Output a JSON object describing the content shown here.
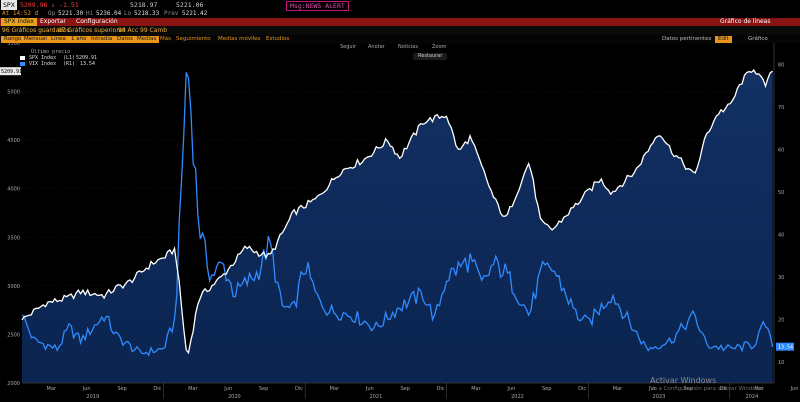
{
  "header": {
    "ticker": "SPX",
    "price_line": "5209.98 ↓ -1.51",
    "time": "At 14:52 d",
    "open_label": "Op",
    "open": "5221.30",
    "high_label": "Hi",
    "high": "5236.04",
    "low_label": "Lo",
    "low": "5218.33",
    "prev_label": "Prev",
    "prev": "5221.42",
    "ref1": "5218.97",
    "ref2": "5221.06",
    "alert": "Msg:NEWS ALERT"
  },
  "toolbar": {
    "chip": "SPX Index",
    "items": [
      "Exportar",
      "Configuración"
    ],
    "right_label": "Gráfico de líneas"
  },
  "row3": {
    "items": [
      "96 Gráficos guardados",
      "97 Gráficos superiores",
      "98 Acc",
      "99 Camb"
    ]
  },
  "rangebar": {
    "chips": [
      "Rango",
      "Mensual",
      "Línea",
      "1 año",
      "Intradía",
      "Datos",
      "Medias"
    ],
    "labels": [
      "Más",
      "Seguimiento",
      "Medias móviles",
      "Estudios"
    ]
  },
  "periods": {
    "items": [
      "1D",
      "3D",
      "1M",
      "6M",
      "YTD",
      "1A",
      "5A",
      "Máx",
      "Diario",
      "Mensual",
      "Tabla"
    ],
    "right_items": [
      "Datos pertinentes",
      "Edit",
      "Gráfico"
    ]
  },
  "chart_tools": [
    "Seguir",
    "Anotar",
    "Noticias",
    "Zoom"
  ],
  "restore_label": "Restaurar",
  "legend": {
    "title": "Último precio",
    "rows": [
      {
        "name": "SPX Index",
        "tag": "(L1)",
        "value": "5209.91"
      },
      {
        "name": "VIX Index",
        "tag": "(R1)",
        "value": "13.54"
      }
    ]
  },
  "watermark": {
    "title": "Activar Windows",
    "subtitle": "Ve a Configuración para activar Windows."
  },
  "chart_data": {
    "type": "line",
    "x_range": [
      "2019-01",
      "2024-04"
    ],
    "x_tick_labels": [
      "Mar",
      "Jun",
      "Sep",
      "Dic",
      "Mar",
      "Jun",
      "Sep",
      "Dic",
      "Mar",
      "Jun",
      "Sep",
      "Dic",
      "Mar",
      "Jun",
      "Sep",
      "Dic",
      "Mar",
      "Jun",
      "Sep",
      "Dic",
      "Mar",
      "Jun",
      "Sep",
      "Dic",
      "Mar"
    ],
    "year_labels": [
      "2019",
      "2020",
      "2021",
      "2022",
      "2023",
      "2024"
    ],
    "left_axis": {
      "ticks": [
        2000,
        2500,
        3000,
        3500,
        4000,
        4500,
        5000,
        5500
      ],
      "range": [
        2000,
        5500
      ]
    },
    "right_axis": {
      "ticks": [
        10,
        20,
        30,
        40,
        50,
        60,
        70,
        80
      ],
      "range": [
        5,
        85
      ]
    },
    "last_values": {
      "SPX Index": "5209.91",
      "VIX Index": "13.54"
    },
    "series": [
      {
        "name": "SPX Index",
        "axis": "left",
        "color": "#ffffff",
        "points": [
          [
            "2019-01",
            2650
          ],
          [
            "2019-03",
            2820
          ],
          [
            "2019-05",
            2880
          ],
          [
            "2019-06",
            2940
          ],
          [
            "2019-08",
            2900
          ],
          [
            "2019-09",
            2980
          ],
          [
            "2019-10",
            3030
          ],
          [
            "2019-12",
            3230
          ],
          [
            "2020-01",
            3290
          ],
          [
            "2020-02",
            3380
          ],
          [
            "2020-03",
            2240
          ],
          [
            "2020-04",
            2880
          ],
          [
            "2020-06",
            3100
          ],
          [
            "2020-08",
            3400
          ],
          [
            "2020-09",
            3340
          ],
          [
            "2020-10",
            3300
          ],
          [
            "2020-12",
            3750
          ],
          [
            "2021-02",
            3900
          ],
          [
            "2021-04",
            4180
          ],
          [
            "2021-06",
            4300
          ],
          [
            "2021-08",
            4500
          ],
          [
            "2021-09",
            4320
          ],
          [
            "2021-11",
            4690
          ],
          [
            "2022-01",
            4760
          ],
          [
            "2022-02",
            4380
          ],
          [
            "2022-03",
            4530
          ],
          [
            "2022-05",
            3900
          ],
          [
            "2022-06",
            3680
          ],
          [
            "2022-08",
            4280
          ],
          [
            "2022-09",
            3640
          ],
          [
            "2022-10",
            3580
          ],
          [
            "2022-12",
            3840
          ],
          [
            "2023-02",
            4100
          ],
          [
            "2023-03",
            3960
          ],
          [
            "2023-05",
            4180
          ],
          [
            "2023-07",
            4590
          ],
          [
            "2023-08",
            4400
          ],
          [
            "2023-10",
            4130
          ],
          [
            "2023-11",
            4550
          ],
          [
            "2023-12",
            4780
          ],
          [
            "2024-01",
            4850
          ],
          [
            "2024-02",
            5100
          ],
          [
            "2024-03",
            5250
          ],
          [
            "2024-04",
            5060
          ],
          [
            "2024-04-20",
            5210
          ]
        ]
      },
      {
        "name": "VIX Index",
        "axis": "right",
        "color": "#2f8bff",
        "points": [
          [
            "2019-01",
            21
          ],
          [
            "2019-02",
            15
          ],
          [
            "2019-04",
            13
          ],
          [
            "2019-05",
            18
          ],
          [
            "2019-06",
            15
          ],
          [
            "2019-08",
            21
          ],
          [
            "2019-09",
            16
          ],
          [
            "2019-11",
            12
          ],
          [
            "2020-01",
            13
          ],
          [
            "2020-02",
            20
          ],
          [
            "2020-03",
            82
          ],
          [
            "2020-04",
            42
          ],
          [
            "2020-05",
            30
          ],
          [
            "2020-06",
            33
          ],
          [
            "2020-07",
            26
          ],
          [
            "2020-09",
            31
          ],
          [
            "2020-10",
            38
          ],
          [
            "2020-11",
            23
          ],
          [
            "2020-12",
            22
          ],
          [
            "2021-01",
            33
          ],
          [
            "2021-02",
            25
          ],
          [
            "2021-03",
            22
          ],
          [
            "2021-05",
            21
          ],
          [
            "2021-07",
            18
          ],
          [
            "2021-09",
            23
          ],
          [
            "2021-11",
            26
          ],
          [
            "2021-12",
            20
          ],
          [
            "2022-01",
            30
          ],
          [
            "2022-03",
            34
          ],
          [
            "2022-04",
            28
          ],
          [
            "2022-05",
            33
          ],
          [
            "2022-06",
            31
          ],
          [
            "2022-08",
            21
          ],
          [
            "2022-09",
            31
          ],
          [
            "2022-10",
            32
          ],
          [
            "2022-12",
            21
          ],
          [
            "2023-01",
            19
          ],
          [
            "2023-03",
            26
          ],
          [
            "2023-05",
            17
          ],
          [
            "2023-06",
            13
          ],
          [
            "2023-08",
            15
          ],
          [
            "2023-10",
            21
          ],
          [
            "2023-11",
            14
          ],
          [
            "2024-01",
            13
          ],
          [
            "2024-03",
            14
          ],
          [
            "2024-04",
            19
          ],
          [
            "2024-04-20",
            13.5
          ]
        ]
      }
    ]
  }
}
